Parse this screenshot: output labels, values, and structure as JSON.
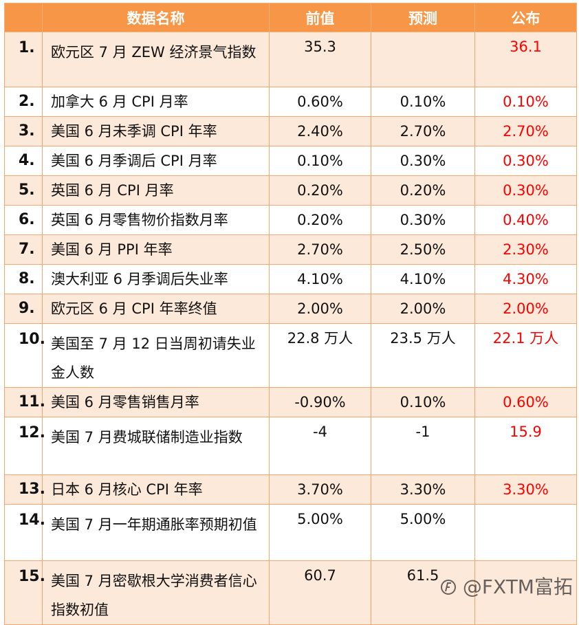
{
  "header": {
    "name": "数据名称",
    "prev": "前值",
    "forecast": "预测",
    "published": "公布"
  },
  "rows": [
    {
      "no": "1.",
      "name": "欧元区 7 月 ZEW 经济景气指数",
      "prev": "35.3",
      "forecast": "",
      "published": "36.1"
    },
    {
      "no": "2.",
      "name": "加拿大 6 月 CPI 月率",
      "prev": "0.60%",
      "forecast": "0.10%",
      "published": "0.10%"
    },
    {
      "no": "3.",
      "name": "美国 6 月未季调 CPI 年率",
      "prev": "2.40%",
      "forecast": "2.70%",
      "published": "2.70%"
    },
    {
      "no": "4.",
      "name": "美国 6 月季调后 CPI 月率",
      "prev": "0.10%",
      "forecast": "0.30%",
      "published": "0.30%"
    },
    {
      "no": "5.",
      "name": "英国 6 月 CPI 月率",
      "prev": "0.20%",
      "forecast": "0.20%",
      "published": "0.30%"
    },
    {
      "no": "6.",
      "name": "英国 6 月零售物价指数月率",
      "prev": "0.20%",
      "forecast": "0.30%",
      "published": "0.40%"
    },
    {
      "no": "7.",
      "name": "美国 6 月 PPI 年率",
      "prev": "2.70%",
      "forecast": "2.50%",
      "published": "2.30%"
    },
    {
      "no": "8.",
      "name": "澳大利亚 6 月季调后失业率",
      "prev": "4.10%",
      "forecast": "4.10%",
      "published": "4.30%"
    },
    {
      "no": "9.",
      "name": "欧元区 6 月 CPI 年率终值",
      "prev": "2.00%",
      "forecast": "2.00%",
      "published": "2.00%"
    },
    {
      "no": "10.",
      "name": "美国至 7 月 12 日当周初请失业金人数",
      "prev": "22.8 万人",
      "forecast": "23.5 万人",
      "published": "22.1 万人"
    },
    {
      "no": "11.",
      "name": "美国 6 月零售销售月率",
      "prev": "-0.90%",
      "forecast": "0.10%",
      "published": "0.60%"
    },
    {
      "no": "12.",
      "name": "美国 7 月费城联储制造业指数",
      "prev": "-4",
      "forecast": "-1",
      "published": "15.9"
    },
    {
      "no": "13.",
      "name": "日本 6 月核心 CPI 年率",
      "prev": "3.70%",
      "forecast": "3.30%",
      "published": "3.30%"
    },
    {
      "no": "14.",
      "name": "美国 7 月一年期通胀率预期初值",
      "prev": "5.00%",
      "forecast": "5.00%",
      "published": ""
    },
    {
      "no": "15.",
      "name": "美国 7 月密歇根大学消费者信心指数初值",
      "prev": "60.7",
      "forecast": "61.5",
      "published": ""
    }
  ],
  "watermark": {
    "text": "@FXTM富拓"
  },
  "colors": {
    "header_bg": "#f79646",
    "band_bg": "#fde9d9",
    "published_text": "#ff0000"
  }
}
